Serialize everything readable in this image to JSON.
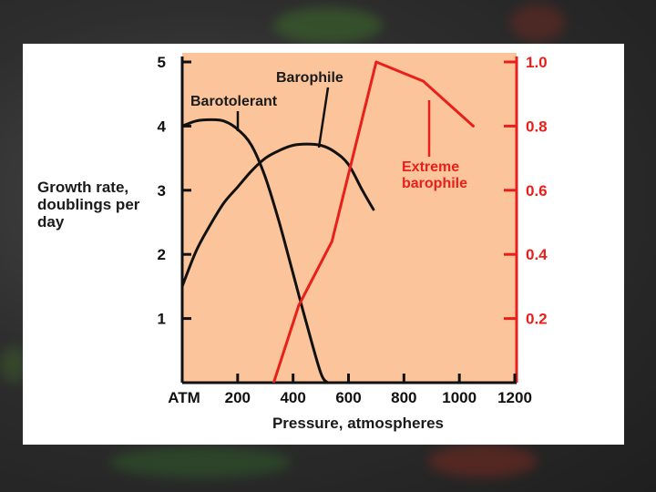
{
  "colors": {
    "plot_bg": "#fbc49a",
    "black_series": "#111111",
    "red_series": "#e8201c",
    "slide_bg": "#2e2e2e"
  },
  "chart_data": {
    "type": "line",
    "xlabel": "Pressure, atmospheres",
    "ylabel_lines": [
      "Growth rate,",
      "doublings per",
      "day"
    ],
    "x_ticks": [
      "ATM",
      "200",
      "400",
      "600",
      "800",
      "1000",
      "1200"
    ],
    "xlim": [
      0,
      1200
    ],
    "y_left_ticks": [
      "1",
      "2",
      "3",
      "4",
      "5"
    ],
    "y_left_lim": [
      0,
      5
    ],
    "y_right_ticks": [
      "0.2",
      "0.4",
      "0.6",
      "0.8",
      "1.0"
    ],
    "y_right_lim": [
      0,
      1.0
    ],
    "grid": false,
    "series": [
      {
        "name": "Barotolerant",
        "axis": "left",
        "color": "#111111",
        "x": [
          0,
          50,
          100,
          150,
          200,
          250,
          300,
          350,
          400,
          450,
          500,
          525
        ],
        "y": [
          4.0,
          4.08,
          4.1,
          4.08,
          3.95,
          3.7,
          3.2,
          2.5,
          1.7,
          0.9,
          0.15,
          0
        ]
      },
      {
        "name": "Barophile",
        "axis": "left",
        "color": "#111111",
        "x": [
          0,
          50,
          100,
          150,
          200,
          250,
          300,
          350,
          400,
          450,
          500,
          550,
          600,
          650,
          690
        ],
        "y": [
          1.5,
          2.05,
          2.45,
          2.8,
          3.05,
          3.3,
          3.5,
          3.62,
          3.7,
          3.72,
          3.7,
          3.6,
          3.4,
          3.0,
          2.7
        ]
      },
      {
        "name": "Extreme barophile",
        "axis": "right",
        "color": "#e8201c",
        "x": [
          330,
          420,
          540,
          700,
          870,
          1050
        ],
        "y": [
          0.0,
          0.24,
          0.44,
          1.0,
          0.94,
          0.8
        ]
      }
    ],
    "annotations": [
      {
        "text": "Barotolerant",
        "series": "Barotolerant"
      },
      {
        "text": "Barophile",
        "series": "Barophile"
      },
      {
        "text_lines": [
          "Extreme",
          "barophile"
        ],
        "series": "Extreme barophile"
      }
    ]
  }
}
